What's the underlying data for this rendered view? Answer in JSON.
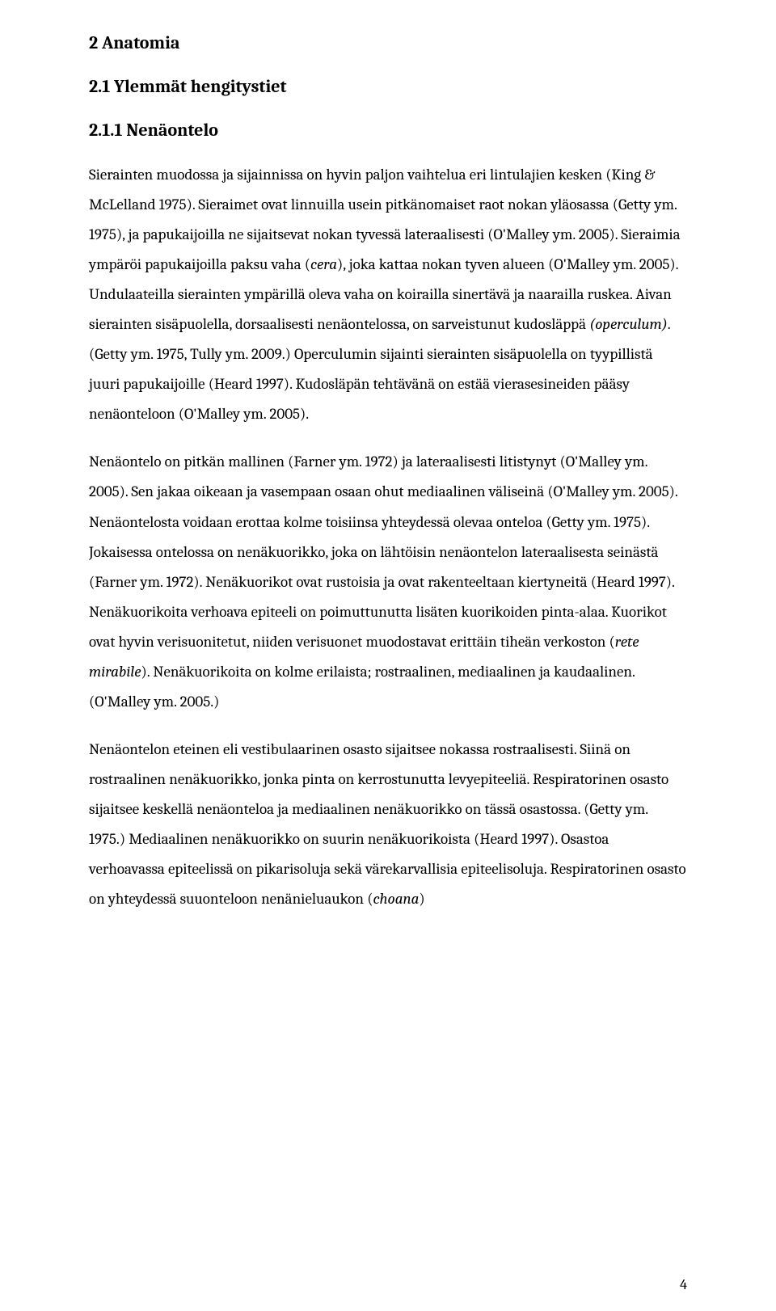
{
  "headings": {
    "h1": "2 Anatomia",
    "h2": "2.1 Ylemmät hengitystiet",
    "h3": "2.1.1 Nenäontelo"
  },
  "paragraphs": {
    "p1a": "Sierainten muodossa ja sijainnissa on hyvin paljon vaihtelua eri lintulajien kesken (King &  McLelland 1975). Sieraimet ovat linnuilla usein pitkänomaiset raot nokan yläosassa (Getty ym. 1975), ja papukaijoilla ne sijaitsevat nokan tyvessä lateraalisesti (O'Malley ym. 2005). Sieraimia ympäröi papukaijoilla paksu vaha (",
    "p1_cera": "cera",
    "p1b": "), joka kattaa nokan tyven alueen (O'Malley ym. 2005). Undulaateilla sierainten ympärillä oleva vaha on koirailla sinertävä ja naarailla ruskea. Aivan sierainten sisäpuolella, dorsaalisesti nenäontelossa, on sarveistunut kudosläppä ",
    "p1_operc": "(operculum)",
    "p1c": ". (Getty ym. 1975, Tully ym. 2009.) Operculumin sijainti sierainten sisäpuolella on tyypillistä juuri papukaijoille (Heard 1997). Kudosläpän tehtävänä on estää vierasesineiden pääsy nenäonteloon (O'Malley ym. 2005).",
    "p2a": "Nenäontelo on pitkän mallinen (Farner  ym.  1972) ja lateraalisesti litistynyt (O'Malley ym. 2005). Sen jakaa oikeaan ja vasempaan osaan ohut mediaalinen väliseinä (O'Malley ym. 2005). Nenäontelosta voidaan erottaa kolme toisiinsa yhteydessä olevaa onteloa (Getty ym. 1975). Jokaisessa ontelossa on nenäkuorikko, joka on lähtöisin nenäontelon lateraalisesta seinästä (Farner ym. 1972). Nenäkuorikot ovat rustoisia ja ovat rakenteeltaan kiertyneitä (Heard 1997). Nenäkuorikoita verhoava epiteeli on poimuttunutta lisäten kuorikoiden pinta-alaa. Kuorikot ovat hyvin verisuonitetut, niiden verisuonet muodostavat erittäin tiheän verkoston (",
    "p2_rete": "rete mirabile",
    "p2b": "). Nenäkuorikoita on kolme erilaista; rostraalinen, mediaalinen ja kaudaalinen. (O'Malley ym. 2005.)",
    "p3a": "Nenäontelon eteinen eli vestibulaarinen osasto sijaitsee nokassa rostraalisesti. Siinä on rostraalinen nenäkuorikko, jonka pinta on kerrostunutta levyepiteeliä.  Respiratorinen osasto sijaitsee keskellä nenäonteloa ja mediaalinen nenäkuorikko on tässä osastossa. (Getty ym. 1975.) Mediaalinen nenäkuorikko on suurin nenäkuorikoista (Heard 1997). Osastoa verhoavassa epiteelissä on pikarisoluja sekä värekarvallisia epiteelisoluja. Respiratorinen osasto on yhteydessä suuonteloon nenänieluaukon (",
    "p3_choana": "choana",
    "p3b": ")"
  },
  "page_number": "4",
  "colors": {
    "background": "#ffffff",
    "text": "#000000"
  },
  "typography": {
    "body_fontsize": 19,
    "heading_fontsize": 22,
    "line_height": 1.95,
    "font_family": "Cambria, Georgia, serif"
  }
}
